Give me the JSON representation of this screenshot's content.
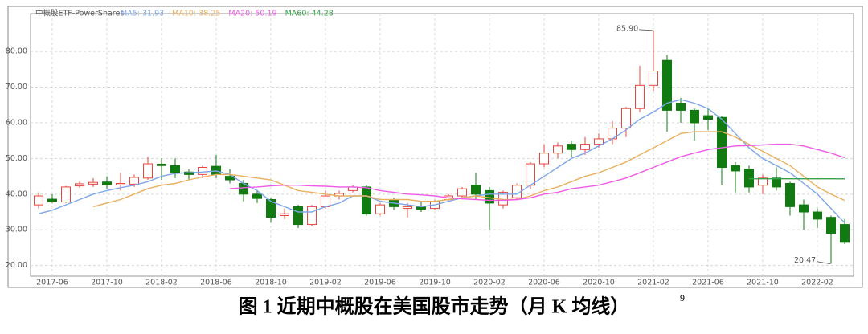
{
  "chart_data": {
    "type": "candlestick",
    "name": "中概股ETF-PowerShares",
    "categories": [
      null,
      "2017-06",
      null,
      null,
      null,
      "2017-10",
      null,
      null,
      null,
      "2018-02",
      null,
      null,
      null,
      "2018-06",
      null,
      null,
      null,
      "2018-10",
      null,
      null,
      null,
      "2019-02",
      null,
      null,
      null,
      "2019-06",
      null,
      null,
      null,
      "2019-10",
      null,
      null,
      null,
      "2020-02",
      null,
      null,
      null,
      "2020-06",
      null,
      null,
      null,
      "2020-10",
      null,
      null,
      null,
      "2021-02",
      null,
      null,
      null,
      "2021-06",
      null,
      null,
      null,
      "2021-10",
      null,
      null,
      null,
      "2022-02",
      null,
      null
    ],
    "open": [
      37,
      38.6,
      37.8,
      42.3,
      42.8,
      43.4,
      42.6,
      42.8,
      44.5,
      48.4,
      48,
      46.2,
      45.5,
      47.8,
      45,
      43,
      40,
      38.5,
      34,
      36.5,
      31.5,
      36.5,
      39.5,
      41,
      42,
      34.5,
      38.5,
      36,
      36.5,
      36,
      38.5,
      39.5,
      42.5,
      41,
      37,
      39,
      42.5,
      48.5,
      51.5,
      54,
      52.5,
      54,
      55.5,
      58.5,
      64,
      70.5,
      77.5,
      65.5,
      63.5,
      62,
      61.5,
      48,
      47,
      42.5,
      44.5,
      43,
      37,
      35,
      33.5,
      31.5
    ],
    "high": [
      40.5,
      40,
      42.3,
      43.5,
      44.5,
      45,
      46,
      45.5,
      50.5,
      50,
      50,
      47,
      48,
      51,
      47,
      44,
      41,
      39,
      36,
      37,
      37,
      41,
      41,
      42.5,
      42.5,
      37.5,
      39,
      37.5,
      38,
      38.5,
      40,
      42,
      46,
      42,
      41,
      43,
      49,
      54,
      54.5,
      55,
      56,
      57,
      60.5,
      64.5,
      76,
      85.9,
      79,
      67,
      64,
      64,
      62,
      49,
      48,
      45.5,
      47.5,
      43.5,
      38.5,
      36,
      34,
      33
    ],
    "low": [
      36,
      37.5,
      37.5,
      41.8,
      42,
      41.5,
      41,
      42,
      44,
      44,
      44.5,
      44,
      44.5,
      44.5,
      43,
      38,
      37.5,
      32,
      33,
      30.5,
      31,
      36,
      38.5,
      40.5,
      34,
      34,
      35.5,
      33.5,
      35,
      35.5,
      38,
      39,
      38.5,
      30,
      36,
      38.5,
      41.5,
      47.5,
      50,
      50.5,
      51,
      53,
      54,
      56,
      63,
      69,
      57.5,
      60,
      55,
      58,
      42.5,
      40.5,
      40.5,
      40,
      41,
      34,
      30,
      30.5,
      20.47,
      26
    ],
    "close": [
      39.5,
      37.9,
      42,
      42.9,
      43.3,
      42.6,
      43,
      44.7,
      48.5,
      48,
      46,
      45.5,
      47.5,
      45.5,
      44,
      40,
      38.8,
      33.5,
      34.5,
      31.5,
      36.5,
      39.5,
      40.2,
      42,
      34.5,
      37,
      36.5,
      36.5,
      35.8,
      38,
      39.5,
      41.5,
      40,
      37.5,
      40.5,
      42.5,
      48.5,
      51.5,
      53.5,
      52.5,
      54,
      55.5,
      58.5,
      64,
      70.5,
      74.5,
      63.5,
      63.5,
      60,
      61,
      47.5,
      46.5,
      42,
      44.5,
      42,
      36.5,
      35,
      33,
      29,
      26.5
    ],
    "up_color": "#e8453c",
    "down_color": "#117a11",
    "series": [
      {
        "name": "MA5: 31.93",
        "color": "#7ea6ea",
        "values": [
          34.5,
          35.5,
          37,
          38.5,
          40,
          41,
          41.8,
          42.5,
          43.5,
          45,
          45.8,
          46,
          46.2,
          46.5,
          45.5,
          43,
          41,
          38,
          36.5,
          35,
          35,
          36.5,
          37.5,
          39.5,
          39.5,
          38,
          37.5,
          37,
          36.5,
          37,
          38,
          39,
          39.5,
          40,
          40,
          40,
          42.5,
          45,
          47.5,
          50,
          51.5,
          53.5,
          55.5,
          58,
          61,
          63,
          65.5,
          66.5,
          65.5,
          64,
          61,
          57,
          53,
          50,
          48,
          46,
          43,
          40,
          36,
          31.93
        ]
      },
      {
        "name": "MA10: 38.25",
        "color": "#e9b060",
        "values": [
          null,
          null,
          null,
          null,
          36.5,
          37.5,
          38.5,
          40,
          41.5,
          42.5,
          43,
          44,
          44.8,
          45.5,
          45.5,
          45,
          44.5,
          44,
          42.5,
          41,
          40.5,
          40,
          39.5,
          39.5,
          39.5,
          38.5,
          38.5,
          38.5,
          38,
          38,
          38.5,
          39,
          39.5,
          39,
          38.5,
          38.5,
          39.5,
          41,
          42,
          43.5,
          45,
          46,
          47.5,
          49,
          51,
          53,
          55,
          57,
          57.5,
          57.5,
          57.5,
          56,
          54,
          52,
          50,
          48,
          45,
          42,
          40,
          38.25
        ]
      },
      {
        "name": "MA20: 50.19",
        "color": "#ee5ce6",
        "values": [
          null,
          null,
          null,
          null,
          null,
          null,
          null,
          null,
          null,
          null,
          null,
          null,
          null,
          null,
          41.5,
          41.8,
          42,
          42.3,
          42.5,
          42.5,
          42.3,
          42.2,
          42,
          42,
          41.8,
          41,
          40.5,
          40,
          39.8,
          39.5,
          39,
          38.7,
          38.5,
          38.3,
          38.3,
          38.5,
          39,
          40,
          40.5,
          41.5,
          42,
          42.5,
          43.5,
          44.5,
          46,
          47.5,
          49,
          50.5,
          51.5,
          52.5,
          53,
          53.5,
          53.6,
          53.8,
          54,
          54,
          53.5,
          52.5,
          51.5,
          50.19
        ]
      },
      {
        "name": "MA60: 44.28",
        "color": "#3aa04a",
        "values": [
          null,
          null,
          null,
          null,
          null,
          null,
          null,
          null,
          null,
          null,
          null,
          null,
          null,
          null,
          null,
          null,
          null,
          null,
          null,
          null,
          null,
          null,
          null,
          null,
          null,
          null,
          null,
          null,
          null,
          null,
          null,
          null,
          null,
          null,
          null,
          null,
          null,
          null,
          null,
          null,
          null,
          null,
          null,
          null,
          null,
          null,
          null,
          null,
          null,
          null,
          null,
          null,
          44.3,
          44.3,
          44.3,
          44.3,
          44.3,
          44.3,
          44.3,
          44.28
        ]
      }
    ],
    "annotations": [
      {
        "value": 85.9,
        "label": "85.90"
      },
      {
        "value": 20.47,
        "label": "20.47"
      }
    ],
    "ylim": [
      17,
      90.6
    ],
    "yticks": [
      {
        "value": 20,
        "label": "20.00"
      },
      {
        "value": 30,
        "label": "30.00"
      },
      {
        "value": 40,
        "label": "40.00"
      },
      {
        "value": 50,
        "label": "50.00"
      },
      {
        "value": 60,
        "label": "60.00"
      },
      {
        "value": 70,
        "label": "70.00"
      },
      {
        "value": 80,
        "label": "80.00"
      }
    ],
    "grid": true
  },
  "caption": {
    "text": "图 1 近期中概股在美国股市走势（月 K 均线）",
    "note": "9"
  }
}
